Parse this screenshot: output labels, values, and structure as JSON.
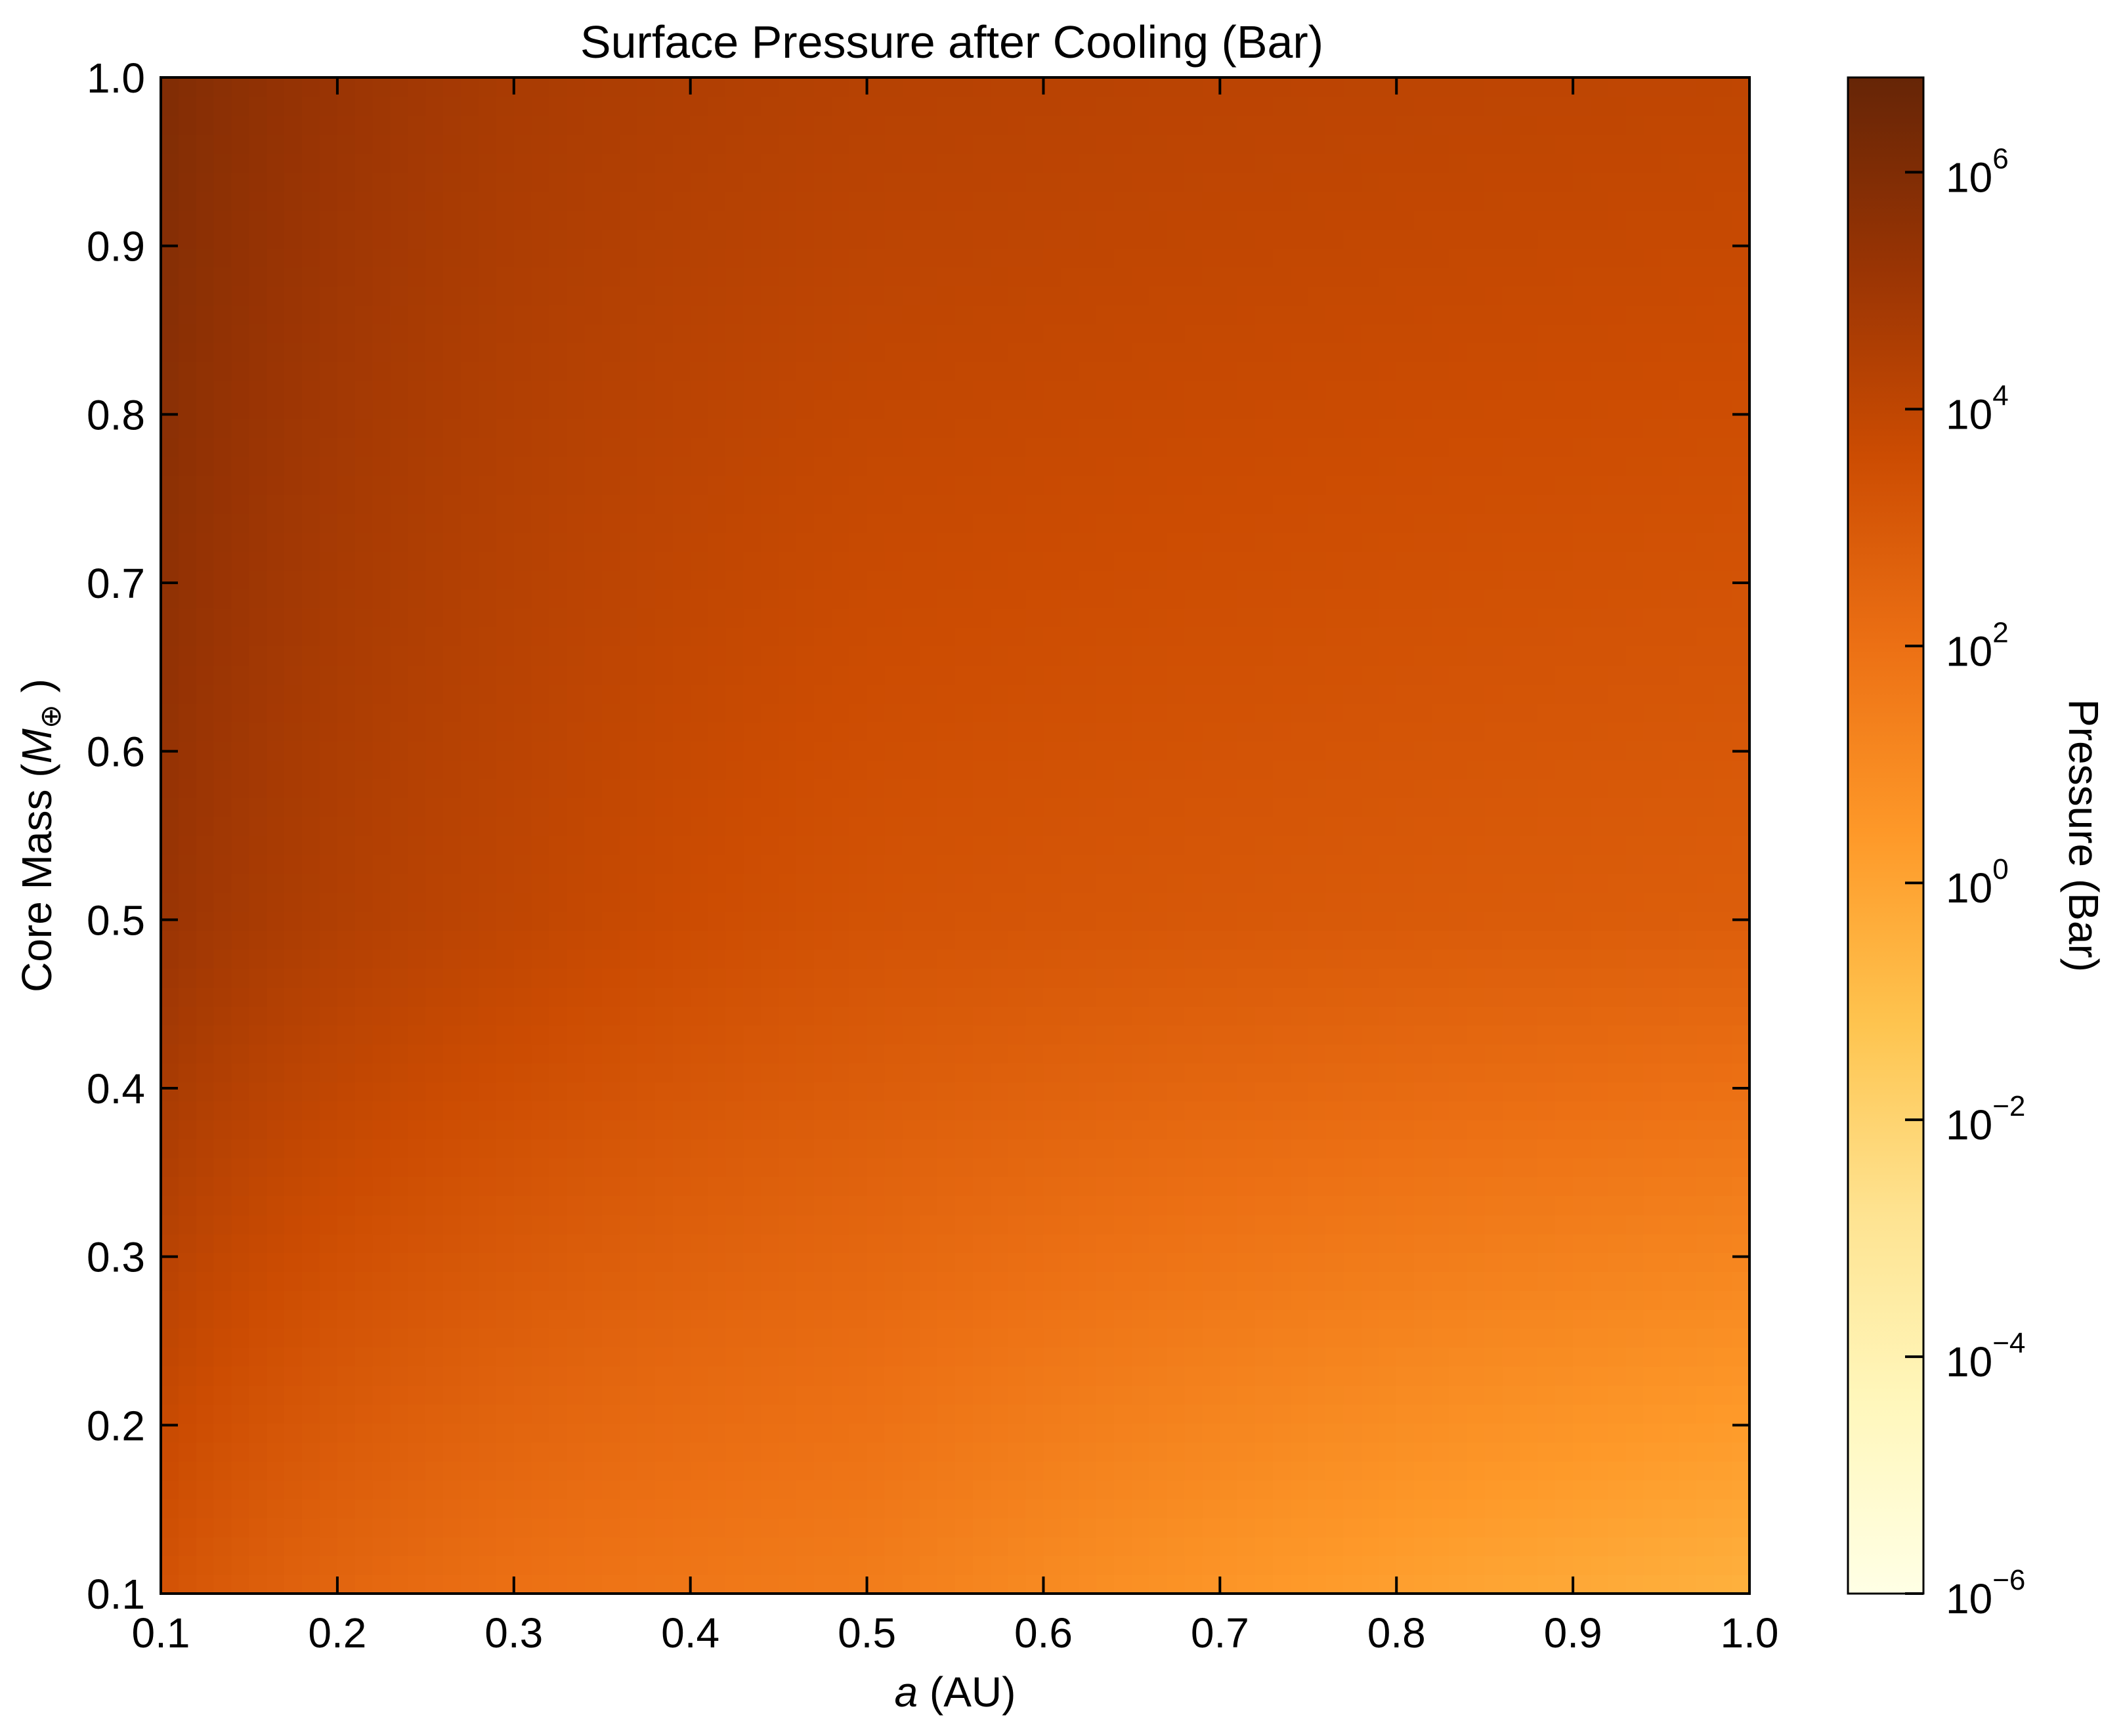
{
  "chart_data": {
    "type": "heatmap",
    "title": "Surface Pressure after Cooling (Bar)",
    "xlabel": {
      "italic": "a",
      "rest": " (AU)"
    },
    "ylabel": {
      "prefix": "Core Mass (",
      "italic": "M",
      "subscript": "⊕",
      "suffix": " )"
    },
    "colorbar_label": "Pressure (Bar)",
    "x_range": [
      0.1,
      1.0
    ],
    "y_range": [
      0.1,
      1.0
    ],
    "x_ticks": [
      "0.1",
      "0.2",
      "0.3",
      "0.4",
      "0.5",
      "0.6",
      "0.7",
      "0.8",
      "0.9",
      "1.0"
    ],
    "y_ticks": [
      "0.1",
      "0.2",
      "0.3",
      "0.4",
      "0.5",
      "0.6",
      "0.7",
      "0.8",
      "0.9",
      "1.0"
    ],
    "colorbar_scale": "log",
    "colorbar_range_log10": [
      -6,
      6.8
    ],
    "colorbar_ticks": [
      {
        "base": "10",
        "exp": "−6",
        "log10": -6
      },
      {
        "base": "10",
        "exp": "−4",
        "log10": -4
      },
      {
        "base": "10",
        "exp": "−2",
        "log10": -2
      },
      {
        "base": "10",
        "exp": "0",
        "log10": 0
      },
      {
        "base": "10",
        "exp": "2",
        "log10": 2
      },
      {
        "base": "10",
        "exp": "4",
        "log10": 4
      },
      {
        "base": "10",
        "exp": "6",
        "log10": 6
      }
    ],
    "colormap": "YlOrBr",
    "colormap_stops": [
      {
        "t": 0.0,
        "color": "#ffffe5"
      },
      {
        "t": 0.125,
        "color": "#fff7bc"
      },
      {
        "t": 0.25,
        "color": "#fee391"
      },
      {
        "t": 0.375,
        "color": "#fec44f"
      },
      {
        "t": 0.5,
        "color": "#fe9929"
      },
      {
        "t": 0.625,
        "color": "#ec7014"
      },
      {
        "t": 0.75,
        "color": "#cc4c02"
      },
      {
        "t": 0.875,
        "color": "#993404"
      },
      {
        "t": 1.0,
        "color": "#662506"
      }
    ],
    "field_description_log10_pressure": [
      {
        "a": 0.1,
        "mass": 1.0,
        "log10_pressure": 6.0
      },
      {
        "a": 0.1,
        "mass": 0.5,
        "log10_pressure": 5.2
      },
      {
        "a": 0.1,
        "mass": 0.1,
        "log10_pressure": 3.3
      },
      {
        "a": 0.3,
        "mass": 1.0,
        "log10_pressure": 4.7
      },
      {
        "a": 0.3,
        "mass": 0.5,
        "log10_pressure": 4.0
      },
      {
        "a": 0.3,
        "mass": 0.1,
        "log10_pressure": 2.0
      },
      {
        "a": 0.5,
        "mass": 1.0,
        "log10_pressure": 4.3
      },
      {
        "a": 0.5,
        "mass": 0.5,
        "log10_pressure": 3.3
      },
      {
        "a": 0.5,
        "mass": 0.1,
        "log10_pressure": 1.5
      },
      {
        "a": 1.0,
        "mass": 1.0,
        "log10_pressure": 4.0
      },
      {
        "a": 1.0,
        "mass": 0.5,
        "log10_pressure": 2.8
      },
      {
        "a": 1.0,
        "mass": 0.1,
        "log10_pressure": -0.5
      }
    ],
    "legend": "colorbar-right",
    "grid": false
  }
}
